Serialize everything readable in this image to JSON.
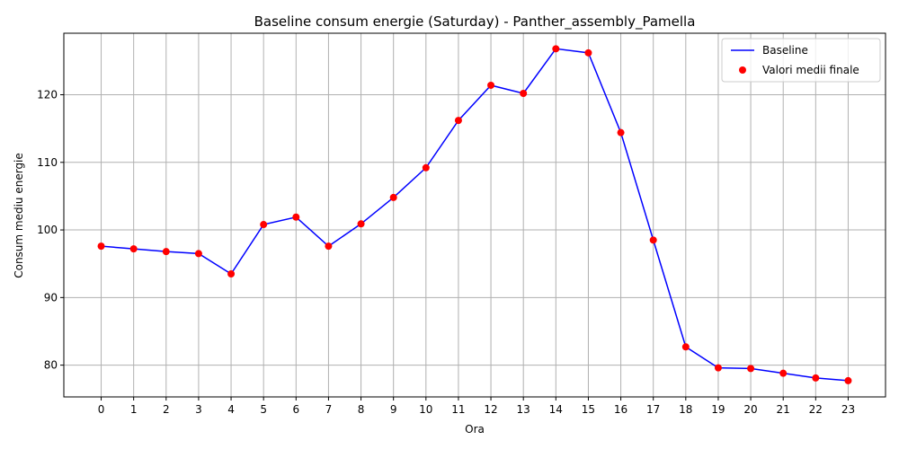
{
  "chart_data": {
    "type": "line",
    "title": "Baseline consum energie (Saturday) - Panther_assembly_Pamella",
    "xlabel": "Ora",
    "ylabel": "Consum mediu energie",
    "x": [
      0,
      1,
      2,
      3,
      4,
      5,
      6,
      7,
      8,
      9,
      10,
      11,
      12,
      13,
      14,
      15,
      16,
      17,
      18,
      19,
      20,
      21,
      22,
      23
    ],
    "xticks": [
      "0",
      "1",
      "2",
      "3",
      "4",
      "5",
      "6",
      "7",
      "8",
      "9",
      "10",
      "11",
      "12",
      "13",
      "14",
      "15",
      "16",
      "17",
      "18",
      "19",
      "20",
      "21",
      "22",
      "23"
    ],
    "yticks": [
      80,
      90,
      100,
      110,
      120
    ],
    "xlim": [
      -1.15,
      24.15
    ],
    "ylim": [
      75.3,
      129.1
    ],
    "grid": true,
    "legend_position": "top-right",
    "series": [
      {
        "name": "Baseline",
        "kind": "line",
        "color": "#0000ff",
        "values": [
          97.6,
          97.2,
          96.8,
          96.5,
          93.5,
          100.8,
          101.9,
          97.6,
          100.9,
          104.8,
          109.2,
          116.2,
          121.4,
          120.2,
          126.8,
          126.2,
          114.4,
          98.5,
          82.7,
          79.6,
          79.5,
          78.8,
          78.1,
          77.7
        ]
      },
      {
        "name": "Valori medii finale",
        "kind": "scatter",
        "color": "#ff0000",
        "values": [
          97.6,
          97.2,
          96.8,
          96.5,
          93.5,
          100.8,
          101.9,
          97.6,
          100.9,
          104.8,
          109.2,
          116.2,
          121.4,
          120.2,
          126.8,
          126.2,
          114.4,
          98.5,
          82.7,
          79.6,
          79.5,
          78.8,
          78.1,
          77.7
        ]
      }
    ]
  }
}
